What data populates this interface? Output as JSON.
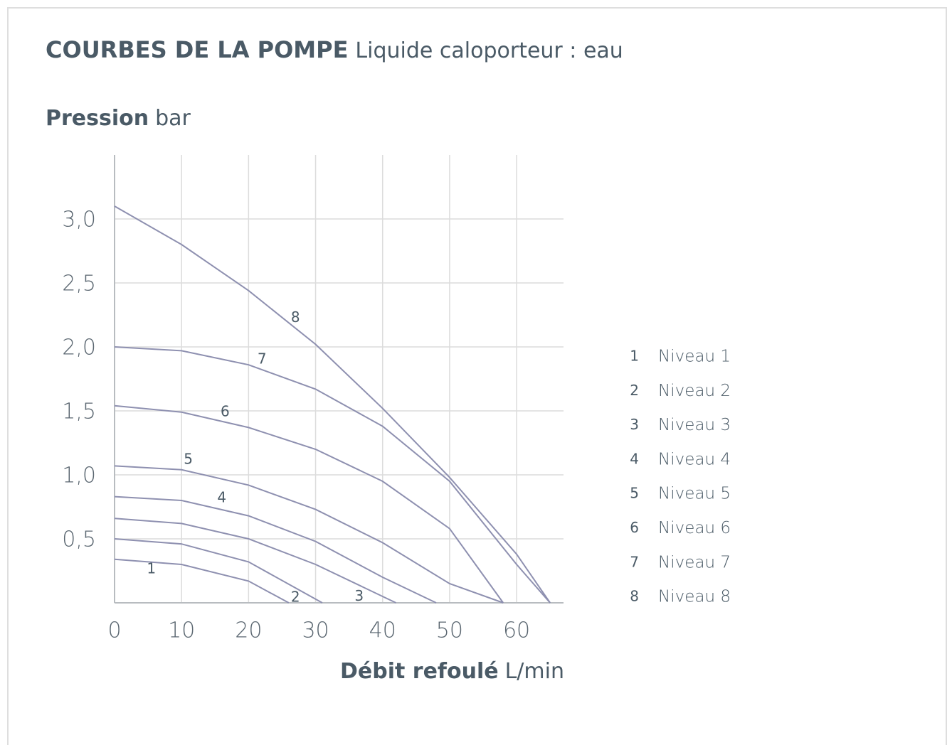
{
  "chart_data": {
    "type": "line",
    "title": "COURBES DE LA POMPE",
    "subtitle": "Liquide caloporteur : eau",
    "y_label": "Pression",
    "y_unit": "bar",
    "x_label": "Débit refoulé",
    "x_unit": "L/min",
    "xlim": [
      0,
      67
    ],
    "ylim": [
      0,
      3.5
    ],
    "xticks": [
      0,
      10,
      20,
      30,
      40,
      50,
      60
    ],
    "yticks": [
      {
        "value": 0.5,
        "label": "0,5"
      },
      {
        "value": 1.0,
        "label": "1,0"
      },
      {
        "value": 1.5,
        "label": "1,5"
      },
      {
        "value": 2.0,
        "label": "2,0"
      },
      {
        "value": 2.5,
        "label": "2,5"
      },
      {
        "value": 3.0,
        "label": "3,0"
      }
    ],
    "grid": true,
    "legend": "right",
    "series": [
      {
        "label": "1",
        "name": "Niveau 1",
        "color": "#8e90b0",
        "x": [
          0,
          10,
          20,
          26
        ],
        "values": [
          0.34,
          0.3,
          0.17,
          0
        ]
      },
      {
        "label": "2",
        "name": "Niveau 2",
        "color": "#8e90b0",
        "x": [
          0,
          10,
          20,
          31
        ],
        "values": [
          0.5,
          0.46,
          0.32,
          0
        ]
      },
      {
        "label": "3",
        "name": "Niveau 3",
        "color": "#8e90b0",
        "x": [
          0,
          10,
          20,
          30,
          42
        ],
        "values": [
          0.66,
          0.62,
          0.5,
          0.3,
          0
        ]
      },
      {
        "label": "4",
        "name": "Niveau 4",
        "color": "#8e90b0",
        "x": [
          0,
          10,
          20,
          30,
          40,
          48
        ],
        "values": [
          0.83,
          0.8,
          0.68,
          0.48,
          0.2,
          0
        ]
      },
      {
        "label": "5",
        "name": "Niveau 5",
        "color": "#8e90b0",
        "x": [
          0,
          10,
          20,
          30,
          40,
          50,
          58
        ],
        "values": [
          1.07,
          1.04,
          0.92,
          0.73,
          0.47,
          0.15,
          0
        ]
      },
      {
        "label": "6",
        "name": "Niveau 6",
        "color": "#8e90b0",
        "x": [
          0,
          10,
          20,
          30,
          40,
          50,
          58
        ],
        "values": [
          1.54,
          1.49,
          1.37,
          1.2,
          0.95,
          0.58,
          0
        ]
      },
      {
        "label": "7",
        "name": "Niveau 7",
        "color": "#8e90b0",
        "x": [
          0,
          10,
          20,
          30,
          40,
          50,
          60,
          65
        ],
        "values": [
          2.0,
          1.97,
          1.86,
          1.67,
          1.38,
          0.95,
          0.3,
          0
        ]
      },
      {
        "label": "8",
        "name": "Niveau 8",
        "color": "#8e90b0",
        "x": [
          0,
          10,
          20,
          30,
          40,
          50,
          60,
          65
        ],
        "values": [
          3.1,
          2.8,
          2.44,
          2.02,
          1.52,
          0.98,
          0.38,
          0
        ]
      }
    ]
  }
}
